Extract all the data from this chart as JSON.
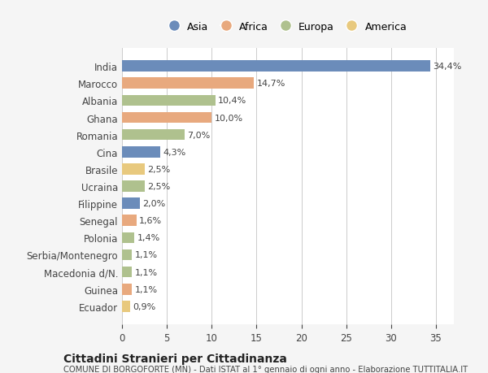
{
  "countries": [
    "India",
    "Marocco",
    "Albania",
    "Ghana",
    "Romania",
    "Cina",
    "Brasile",
    "Ucraina",
    "Filippine",
    "Senegal",
    "Polonia",
    "Serbia/Montenegro",
    "Macedonia d/N.",
    "Guinea",
    "Ecuador"
  ],
  "values": [
    34.4,
    14.7,
    10.4,
    10.0,
    7.0,
    4.3,
    2.5,
    2.5,
    2.0,
    1.6,
    1.4,
    1.1,
    1.1,
    1.1,
    0.9
  ],
  "labels": [
    "34,4%",
    "14,7%",
    "10,4%",
    "10,0%",
    "7,0%",
    "4,3%",
    "2,5%",
    "2,5%",
    "2,0%",
    "1,6%",
    "1,4%",
    "1,1%",
    "1,1%",
    "1,1%",
    "0,9%"
  ],
  "continents": [
    "Asia",
    "Africa",
    "Europa",
    "Africa",
    "Europa",
    "Asia",
    "America",
    "Europa",
    "Asia",
    "Africa",
    "Europa",
    "Europa",
    "Europa",
    "Africa",
    "America"
  ],
  "colors": {
    "Asia": "#6b8cba",
    "Africa": "#e8a97e",
    "Europa": "#afc18e",
    "America": "#e8c97e"
  },
  "legend_order": [
    "Asia",
    "Africa",
    "Europa",
    "America"
  ],
  "title": "Cittadini Stranieri per Cittadinanza",
  "subtitle": "COMUNE DI BORGOFORTE (MN) - Dati ISTAT al 1° gennaio di ogni anno - Elaborazione TUTTITALIA.IT",
  "xlim": [
    0,
    37
  ],
  "xticks": [
    0,
    5,
    10,
    15,
    20,
    25,
    30,
    35
  ],
  "bg_color": "#f5f5f5",
  "bar_bg_color": "#ffffff"
}
